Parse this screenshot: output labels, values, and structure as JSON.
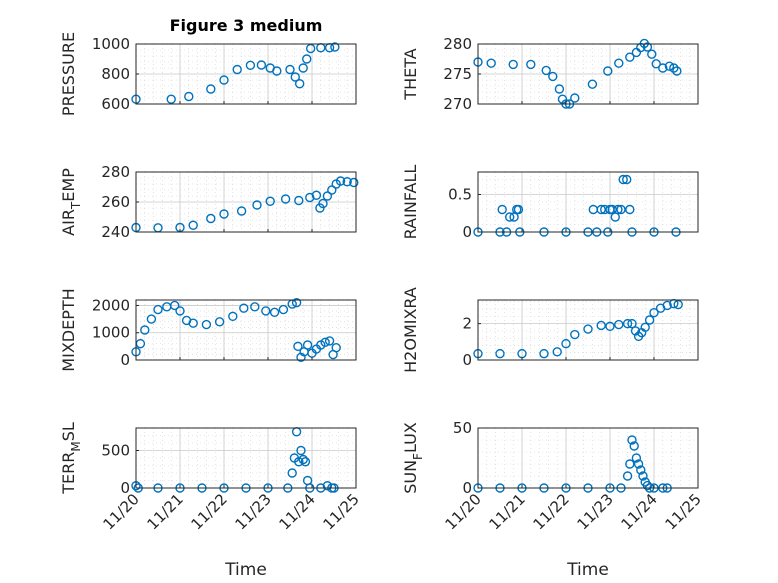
{
  "figure": {
    "title": "Figure 3 medium",
    "xlabel": "Time",
    "marker_color": "#0072BD",
    "x_ticks": [
      {
        "v": 0,
        "label": "11/20"
      },
      {
        "v": 1,
        "label": "11/21"
      },
      {
        "v": 2,
        "label": "11/22"
      },
      {
        "v": 3,
        "label": "11/23"
      },
      {
        "v": 4,
        "label": "11/24"
      },
      {
        "v": 5,
        "label": "11/25"
      }
    ]
  },
  "chart_data": [
    {
      "type": "scatter",
      "ylabel_main": "PRESSURE",
      "ylabel_sub": "",
      "ylabel_tail": "",
      "xlim": [
        0,
        5
      ],
      "ylim": [
        600,
        1000
      ],
      "yticks": [
        600,
        800,
        1000
      ],
      "grid": true,
      "points": [
        [
          0,
          632
        ],
        [
          0.8,
          632
        ],
        [
          1.2,
          650
        ],
        [
          1.7,
          700
        ],
        [
          2.0,
          760
        ],
        [
          2.3,
          830
        ],
        [
          2.6,
          858
        ],
        [
          2.85,
          860
        ],
        [
          3.05,
          840
        ],
        [
          3.2,
          820
        ],
        [
          3.5,
          830
        ],
        [
          3.62,
          780
        ],
        [
          3.72,
          735
        ],
        [
          3.8,
          840
        ],
        [
          3.88,
          900
        ],
        [
          3.97,
          970
        ],
        [
          4.2,
          975
        ],
        [
          4.4,
          975
        ],
        [
          4.52,
          980
        ]
      ]
    },
    {
      "type": "scatter",
      "ylabel_main": "THETA",
      "ylabel_sub": "",
      "ylabel_tail": "",
      "xlim": [
        0,
        5
      ],
      "ylim": [
        270,
        280
      ],
      "yticks": [
        270,
        275,
        280
      ],
      "grid": true,
      "points": [
        [
          0,
          277
        ],
        [
          0.3,
          276.8
        ],
        [
          0.8,
          276.6
        ],
        [
          1.2,
          276.6
        ],
        [
          1.55,
          275.6
        ],
        [
          1.7,
          274.6
        ],
        [
          1.85,
          272.5
        ],
        [
          1.92,
          270.8
        ],
        [
          2.0,
          270
        ],
        [
          2.08,
          270
        ],
        [
          2.2,
          271
        ],
        [
          2.6,
          273.3
        ],
        [
          2.95,
          275.5
        ],
        [
          3.2,
          276.8
        ],
        [
          3.45,
          277.8
        ],
        [
          3.6,
          278.6
        ],
        [
          3.7,
          279.4
        ],
        [
          3.78,
          280.1
        ],
        [
          3.85,
          279.5
        ],
        [
          3.95,
          278.3
        ],
        [
          4.05,
          276.7
        ],
        [
          4.2,
          276
        ],
        [
          4.35,
          276.3
        ],
        [
          4.45,
          276
        ],
        [
          4.52,
          275.5
        ]
      ]
    },
    {
      "type": "scatter",
      "ylabel_main": "AIR",
      "ylabel_sub": "T",
      "ylabel_tail": "EMP",
      "xlim": [
        0,
        5
      ],
      "ylim": [
        240,
        280
      ],
      "yticks": [
        240,
        260,
        280
      ],
      "grid": true,
      "points": [
        [
          0,
          243
        ],
        [
          0.5,
          242.8
        ],
        [
          1.0,
          243
        ],
        [
          1.3,
          244.5
        ],
        [
          1.7,
          249
        ],
        [
          2.0,
          252
        ],
        [
          2.4,
          254
        ],
        [
          2.75,
          258
        ],
        [
          3.05,
          260.5
        ],
        [
          3.4,
          262
        ],
        [
          3.7,
          261
        ],
        [
          3.95,
          263
        ],
        [
          4.1,
          264.5
        ],
        [
          4.18,
          256
        ],
        [
          4.25,
          259
        ],
        [
          4.35,
          264
        ],
        [
          4.45,
          268
        ],
        [
          4.55,
          272
        ],
        [
          4.65,
          274
        ],
        [
          4.8,
          273.5
        ],
        [
          4.95,
          273
        ]
      ]
    },
    {
      "type": "scatter",
      "ylabel_main": "RAINFALL",
      "ylabel_sub": "",
      "ylabel_tail": "",
      "xlim": [
        0,
        5
      ],
      "ylim": [
        0,
        0.8
      ],
      "yticks": [
        0,
        0.5
      ],
      "ytick_labels": [
        "0",
        "0.5"
      ],
      "grid": true,
      "points": [
        [
          0,
          0
        ],
        [
          0.5,
          0
        ],
        [
          0.55,
          0.3
        ],
        [
          0.65,
          0
        ],
        [
          0.72,
          0.2
        ],
        [
          0.82,
          0.2
        ],
        [
          0.88,
          0.3
        ],
        [
          0.92,
          0.3
        ],
        [
          0.95,
          0
        ],
        [
          1.5,
          0
        ],
        [
          2.0,
          0
        ],
        [
          2.5,
          0
        ],
        [
          2.62,
          0.3
        ],
        [
          2.7,
          0
        ],
        [
          2.8,
          0.3
        ],
        [
          2.88,
          0.3
        ],
        [
          2.95,
          0
        ],
        [
          3.0,
          0.3
        ],
        [
          3.05,
          0.3
        ],
        [
          3.12,
          0.2
        ],
        [
          3.18,
          0.3
        ],
        [
          3.25,
          0.3
        ],
        [
          3.3,
          0.7
        ],
        [
          3.38,
          0.7
        ],
        [
          3.45,
          0.3
        ],
        [
          3.5,
          0
        ],
        [
          4.0,
          0
        ],
        [
          4.5,
          0
        ]
      ]
    },
    {
      "type": "scatter",
      "ylabel_main": "MIXDEPTH",
      "ylabel_sub": "",
      "ylabel_tail": "",
      "xlim": [
        0,
        5
      ],
      "ylim": [
        0,
        2200
      ],
      "yticks": [
        0,
        1000,
        2000
      ],
      "grid": true,
      "points": [
        [
          0,
          300
        ],
        [
          0.1,
          600
        ],
        [
          0.2,
          1100
        ],
        [
          0.35,
          1500
        ],
        [
          0.5,
          1850
        ],
        [
          0.7,
          1950
        ],
        [
          0.88,
          2000
        ],
        [
          1.0,
          1800
        ],
        [
          1.15,
          1450
        ],
        [
          1.3,
          1350
        ],
        [
          1.6,
          1300
        ],
        [
          1.9,
          1400
        ],
        [
          2.2,
          1600
        ],
        [
          2.45,
          1900
        ],
        [
          2.7,
          1950
        ],
        [
          2.95,
          1800
        ],
        [
          3.15,
          1750
        ],
        [
          3.35,
          1850
        ],
        [
          3.55,
          2050
        ],
        [
          3.65,
          2100
        ],
        [
          3.68,
          500
        ],
        [
          3.75,
          100
        ],
        [
          3.82,
          300
        ],
        [
          3.9,
          550
        ],
        [
          4.0,
          250
        ],
        [
          4.1,
          400
        ],
        [
          4.2,
          550
        ],
        [
          4.3,
          650
        ],
        [
          4.4,
          700
        ],
        [
          4.48,
          200
        ],
        [
          4.55,
          450
        ]
      ]
    },
    {
      "type": "scatter",
      "ylabel_main": "H2OMIXRA",
      "ylabel_sub": "",
      "ylabel_tail": "",
      "xlim": [
        0,
        5
      ],
      "ylim": [
        0,
        3.3
      ],
      "yticks": [
        0,
        2
      ],
      "grid": true,
      "points": [
        [
          0,
          0.35
        ],
        [
          0.5,
          0.35
        ],
        [
          1.0,
          0.35
        ],
        [
          1.5,
          0.35
        ],
        [
          1.8,
          0.45
        ],
        [
          2.0,
          0.9
        ],
        [
          2.2,
          1.4
        ],
        [
          2.5,
          1.7
        ],
        [
          2.8,
          1.9
        ],
        [
          3.0,
          1.85
        ],
        [
          3.2,
          1.95
        ],
        [
          3.4,
          2.0
        ],
        [
          3.5,
          2.0
        ],
        [
          3.58,
          1.6
        ],
        [
          3.65,
          1.3
        ],
        [
          3.72,
          1.5
        ],
        [
          3.8,
          1.8
        ],
        [
          3.9,
          2.2
        ],
        [
          4.0,
          2.6
        ],
        [
          4.15,
          2.85
        ],
        [
          4.3,
          3.0
        ],
        [
          4.45,
          3.1
        ],
        [
          4.55,
          3.05
        ]
      ]
    },
    {
      "type": "scatter",
      "ylabel_main": "TERR",
      "ylabel_sub": "M",
      "ylabel_tail": "SL",
      "xlim": [
        0,
        5
      ],
      "ylim": [
        0,
        800
      ],
      "yticks": [
        0,
        500
      ],
      "grid": true,
      "points": [
        [
          0,
          30
        ],
        [
          0.05,
          0
        ],
        [
          0.5,
          0
        ],
        [
          1.0,
          0
        ],
        [
          1.5,
          0
        ],
        [
          2.0,
          0
        ],
        [
          2.5,
          0
        ],
        [
          3.0,
          0
        ],
        [
          3.45,
          0
        ],
        [
          3.55,
          200
        ],
        [
          3.6,
          400
        ],
        [
          3.65,
          750
        ],
        [
          3.7,
          350
        ],
        [
          3.75,
          500
        ],
        [
          3.8,
          380
        ],
        [
          3.85,
          350
        ],
        [
          3.9,
          100
        ],
        [
          3.95,
          0
        ],
        [
          4.2,
          0
        ],
        [
          4.35,
          30
        ],
        [
          4.45,
          0
        ],
        [
          4.5,
          0
        ]
      ]
    },
    {
      "type": "scatter",
      "ylabel_main": "SUN",
      "ylabel_sub": "F",
      "ylabel_tail": "LUX",
      "xlim": [
        0,
        5
      ],
      "ylim": [
        0,
        50
      ],
      "yticks": [
        0,
        50
      ],
      "grid": true,
      "points": [
        [
          0,
          0
        ],
        [
          0.5,
          0
        ],
        [
          1.0,
          0
        ],
        [
          1.5,
          0
        ],
        [
          2.0,
          0
        ],
        [
          2.5,
          0
        ],
        [
          3.0,
          0
        ],
        [
          3.25,
          0
        ],
        [
          3.4,
          10
        ],
        [
          3.45,
          20
        ],
        [
          3.5,
          40
        ],
        [
          3.55,
          35
        ],
        [
          3.6,
          25
        ],
        [
          3.65,
          20
        ],
        [
          3.7,
          15
        ],
        [
          3.75,
          10
        ],
        [
          3.8,
          5
        ],
        [
          3.85,
          2
        ],
        [
          3.9,
          0
        ],
        [
          4.0,
          0
        ],
        [
          4.2,
          0
        ],
        [
          4.3,
          0
        ]
      ]
    }
  ]
}
